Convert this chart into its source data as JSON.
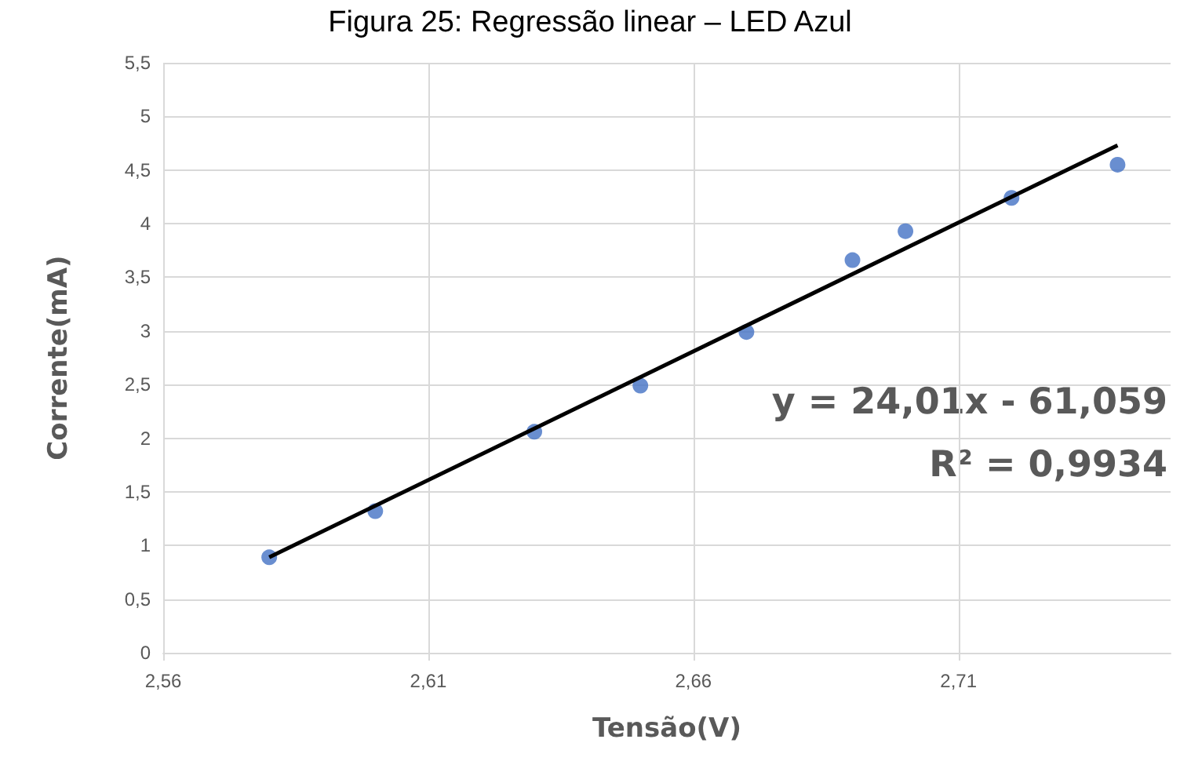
{
  "chart_data": {
    "type": "scatter",
    "title": "Figura 25: Regressão linear – LED Azul",
    "xlabel": "Tensão(V)",
    "ylabel": "Corrente(mA)",
    "annotations": [
      "y = 24,01x - 61,059",
      "R² = 0,9934"
    ],
    "series": [
      {
        "type": "scatter",
        "color": "#4472c4",
        "marker": "circle",
        "x": [
          2.58,
          2.6,
          2.63,
          2.65,
          2.67,
          2.69,
          2.7,
          2.72,
          2.74
        ],
        "values": [
          0.89,
          1.32,
          2.06,
          2.49,
          2.99,
          3.66,
          3.93,
          4.24,
          4.55
        ]
      },
      {
        "type": "line",
        "color": "#000000",
        "marker": "none",
        "line_style": "solid",
        "x": [
          2.58,
          2.74
        ],
        "values": [
          0.89,
          4.73
        ]
      }
    ],
    "xlim": [
      2.56,
      2.75
    ],
    "xticks": [
      {
        "value": 2.56,
        "label": "2,56"
      },
      {
        "value": 2.61,
        "label": "2,61"
      },
      {
        "value": 2.66,
        "label": "2,66"
      },
      {
        "value": 2.71,
        "label": "2,71"
      }
    ],
    "ylim": [
      0,
      5.5
    ],
    "yticks": [
      0,
      {
        "value": 0.5,
        "label": "0,5"
      },
      1,
      {
        "value": 1.5,
        "label": "1,5"
      },
      2,
      {
        "value": 2.5,
        "label": "2,5"
      },
      3,
      {
        "value": 3.5,
        "label": "3,5"
      },
      4,
      {
        "value": 4.5,
        "label": "4,5"
      },
      5,
      {
        "value": 5.5,
        "label": "5,5"
      }
    ],
    "grid": true
  }
}
